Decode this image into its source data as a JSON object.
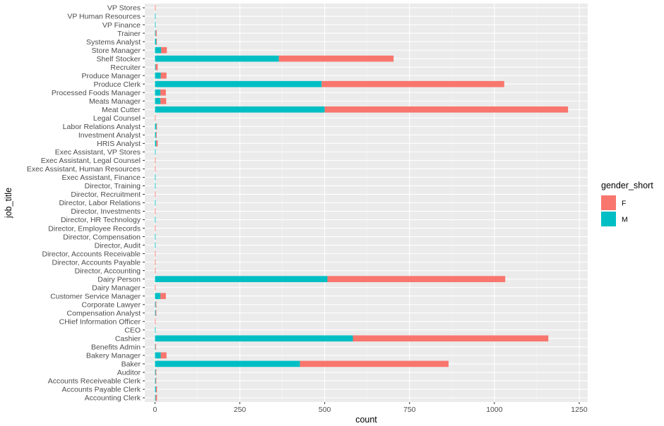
{
  "chart_data": {
    "type": "bar",
    "orientation": "horizontal",
    "stacked": true,
    "xlabel": "count",
    "ylabel": "job_title",
    "xlim": [
      -30,
      1275
    ],
    "xticks": [
      0,
      250,
      500,
      750,
      1000,
      1250
    ],
    "xtick_labels": [
      "0",
      "250",
      "500",
      "750",
      "1000",
      "1250"
    ],
    "grid": true,
    "legend": {
      "title": "gender_short",
      "position": "right",
      "entries": [
        {
          "label": "F",
          "color": "#F8766D"
        },
        {
          "label": "M",
          "color": "#00BFC4"
        }
      ]
    },
    "categories": [
      "Accounting Clerk",
      "Accounts Payable Clerk",
      "Accounts Receiveable Clerk",
      "Auditor",
      "Baker",
      "Bakery Manager",
      "Benefits Admin",
      "Cashier",
      "CEO",
      "CHief Information Officer",
      "Compensation Analyst",
      "Corporate Lawyer",
      "Customer Service Manager",
      "Dairy Manager",
      "Dairy Person",
      "Director, Accounting",
      "Director, Accounts Payable",
      "Director, Accounts Receivable",
      "Director, Audit",
      "Director, Compensation",
      "Director, Employee Records",
      "Director, HR Technology",
      "Director, Investments",
      "Director, Labor Relations",
      "Director, Recruitment",
      "Director, Training",
      "Exec Assistant, Finance",
      "Exec Assistant, Human Resources",
      "Exec Assistant, Legal Counsel",
      "Exec Assistant, VP Stores",
      "HRIS Analyst",
      "Investment Analyst",
      "Labor Relations Analyst",
      "Legal Counsel",
      "Meat Cutter",
      "Meats Manager",
      "Processed Foods Manager",
      "Produce Clerk",
      "Produce Manager",
      "Recruiter",
      "Shelf Stocker",
      "Store Manager",
      "Systems Analyst",
      "Trainer",
      "VP Finance",
      "VP Human Resources",
      "VP Stores"
    ],
    "series": [
      {
        "name": "M",
        "color": "#00BFC4",
        "values": [
          2,
          3,
          2,
          2,
          427,
          17,
          1,
          583,
          1,
          0,
          2,
          2,
          16,
          0,
          508,
          0,
          0,
          0,
          1,
          1,
          0,
          1,
          0,
          1,
          0,
          1,
          1,
          0,
          0,
          1,
          4,
          3,
          4,
          0,
          500,
          16,
          16,
          491,
          17,
          2,
          365,
          18,
          4,
          2,
          1,
          1,
          0
        ]
      },
      {
        "name": "F",
        "color": "#F8766D",
        "values": [
          4,
          3,
          2,
          2,
          438,
          17,
          2,
          576,
          0,
          1,
          2,
          2,
          16,
          1,
          524,
          1,
          1,
          1,
          0,
          0,
          1,
          0,
          1,
          0,
          1,
          0,
          0,
          1,
          1,
          0,
          4,
          2,
          2,
          1,
          717,
          17,
          16,
          538,
          17,
          6,
          338,
          17,
          1,
          3,
          0,
          0,
          1
        ]
      }
    ]
  }
}
